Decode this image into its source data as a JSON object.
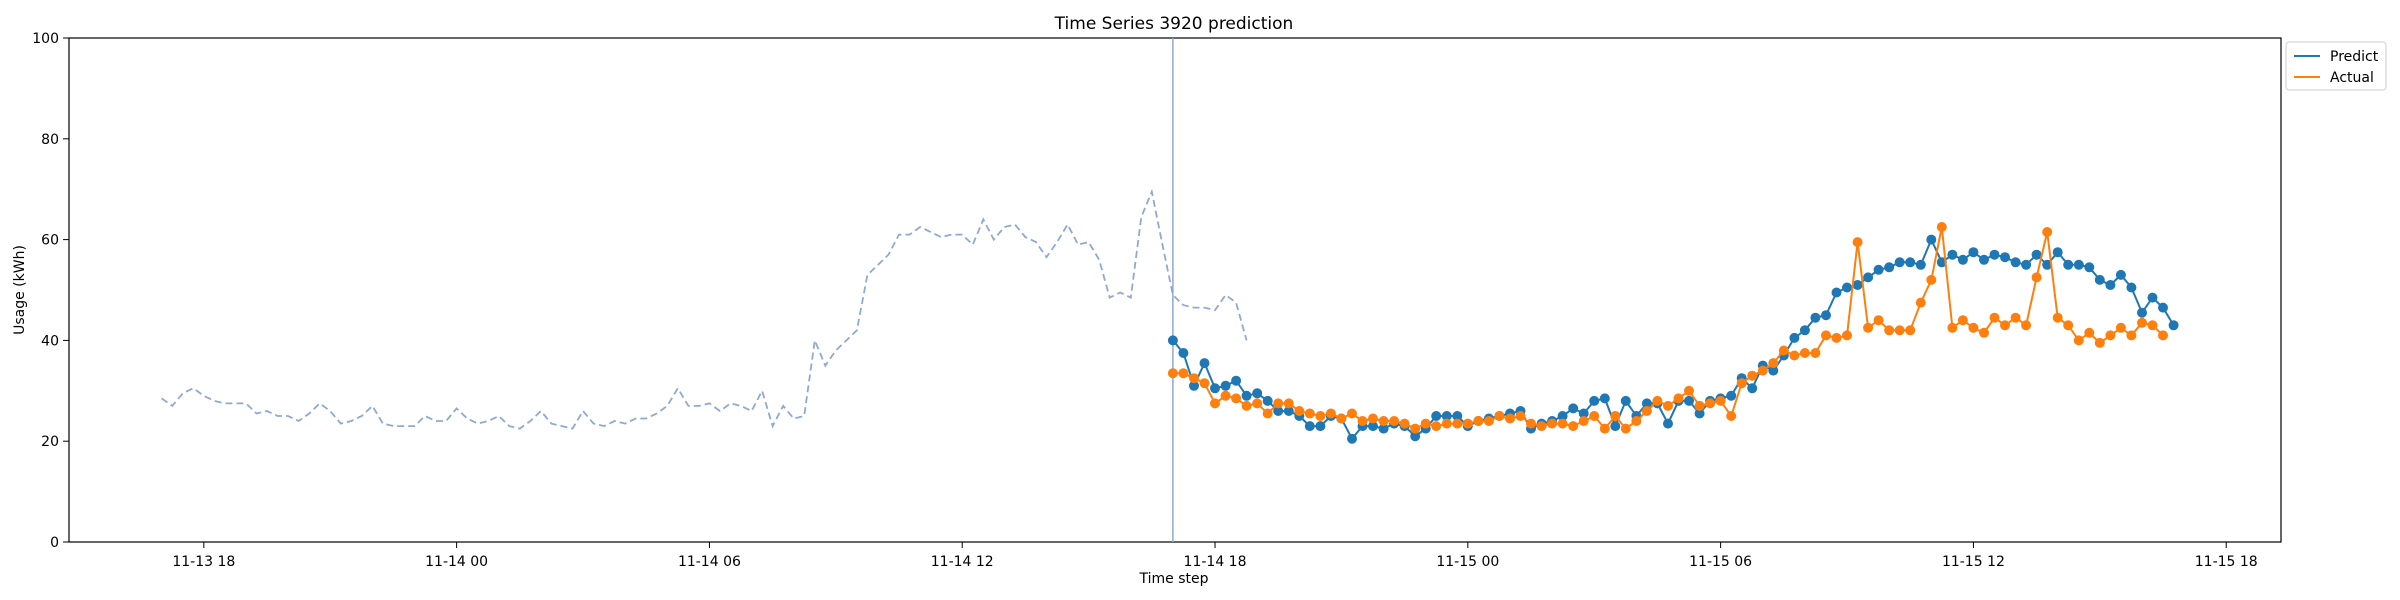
{
  "chart_data": {
    "type": "line",
    "title": "Time Series 3920 prediction",
    "xlabel": "Time step",
    "ylabel": "Usage (kWh)",
    "ylim": [
      0,
      100
    ],
    "y_ticks": [
      0,
      20,
      40,
      60,
      80,
      100
    ],
    "x_ticks": [
      "11-13 18",
      "11-14 00",
      "11-14 06",
      "11-14 12",
      "11-14 18",
      "11-15 00",
      "11-15 06",
      "11-15 12",
      "11-15 18"
    ],
    "x_range_hours": [
      -3.2,
      49.3
    ],
    "x_tick_hours": [
      0,
      6,
      12,
      18,
      24,
      30,
      36,
      42,
      48
    ],
    "forecast_start_hour": 23,
    "legend": {
      "position": "top-right",
      "entries": [
        "Predict",
        "Actual"
      ]
    },
    "colors": {
      "history": "#8fa9d1",
      "predict": "#1f77b4",
      "actual": "#ff7f0e",
      "vline": "#8fa9d1"
    },
    "history": {
      "x_start": -1.0,
      "x_step": 0.25,
      "values": [
        28.5,
        27.0,
        29.5,
        30.5,
        29.0,
        28.0,
        27.5,
        27.5,
        27.5,
        25.5,
        26.0,
        25.0,
        25.0,
        24.0,
        25.5,
        27.5,
        26.0,
        23.5,
        24.0,
        25.0,
        27.0,
        23.5,
        23.0,
        23.0,
        23.0,
        25.0,
        24.0,
        24.0,
        26.5,
        24.5,
        23.5,
        24.0,
        25.0,
        23.0,
        22.5,
        24.0,
        26.0,
        23.5,
        23.0,
        22.5,
        26.0,
        23.5,
        23.0,
        24.0,
        23.5,
        24.5,
        24.5,
        25.5,
        27.0,
        30.5,
        27.0,
        27.0,
        27.5,
        26.0,
        27.5,
        27.0,
        26.0,
        30.0,
        23.0,
        27.0,
        24.5,
        25.0,
        40.0,
        35.0,
        38.0,
        40.0,
        42.0,
        53.0,
        55.0,
        57.0,
        61.0,
        61.0,
        62.5,
        61.5,
        60.5,
        61.0,
        61.0,
        59.0,
        64.0,
        60.0,
        62.5,
        63.0,
        60.5,
        59.5,
        56.5,
        59.5,
        63.0,
        59.0,
        59.5,
        56.0,
        48.5,
        49.5,
        48.5,
        64.5,
        69.5,
        59.0,
        49.0,
        47.0,
        46.5,
        46.5,
        46.0,
        49.0,
        47.5,
        40.0
      ]
    },
    "series": [
      {
        "name": "Predict",
        "x_start": 23.0,
        "x_step": 0.25,
        "values": [
          40.0,
          37.5,
          31.0,
          35.5,
          30.5,
          31.0,
          32.0,
          29.0,
          29.5,
          28.0,
          26.0,
          26.0,
          25.0,
          23.0,
          23.0,
          25.0,
          24.5,
          20.5,
          23.0,
          23.0,
          22.5,
          23.5,
          23.0,
          21.0,
          22.5,
          25.0,
          25.0,
          25.0,
          23.0,
          24.0,
          24.5,
          25.0,
          25.5,
          26.0,
          22.5,
          23.5,
          24.0,
          25.0,
          26.5,
          25.5,
          28.0,
          28.5,
          23.0,
          28.0,
          25.0,
          27.5,
          27.5,
          23.5,
          28.0,
          28.0,
          25.5,
          28.0,
          28.5,
          29.0,
          32.5,
          30.5,
          35.0,
          34.0,
          37.0,
          40.5,
          42.0,
          44.5,
          45.0,
          49.5,
          50.5,
          51.0,
          52.5,
          54.0,
          54.5,
          55.5,
          55.5,
          55.0,
          60.0,
          55.5,
          57.0,
          56.0,
          57.5,
          56.0,
          57.0,
          56.5,
          55.5,
          55.0,
          57.0,
          55.0,
          57.5,
          55.0,
          55.0,
          54.5,
          52.0,
          51.0,
          53.0,
          50.5,
          45.5,
          48.5,
          46.5,
          43.0
        ]
      },
      {
        "name": "Actual",
        "x_start": 23.0,
        "x_step": 0.25,
        "values": [
          33.5,
          33.5,
          32.5,
          31.5,
          27.5,
          29.0,
          28.5,
          27.0,
          27.5,
          25.5,
          27.5,
          27.5,
          26.0,
          25.5,
          25.0,
          25.5,
          24.5,
          25.5,
          24.0,
          24.5,
          24.0,
          24.0,
          23.5,
          22.5,
          23.5,
          23.0,
          23.5,
          23.5,
          23.5,
          24.0,
          24.0,
          25.0,
          24.5,
          25.0,
          23.5,
          23.0,
          23.5,
          23.5,
          23.0,
          24.0,
          25.0,
          22.5,
          25.0,
          22.5,
          24.0,
          26.0,
          28.0,
          27.0,
          28.5,
          30.0,
          27.0,
          27.5,
          28.0,
          25.0,
          31.5,
          33.0,
          34.0,
          35.5,
          38.0,
          37.0,
          37.5,
          37.5,
          41.0,
          40.5,
          41.0,
          59.5,
          42.5,
          44.0,
          42.0,
          42.0,
          42.0,
          47.5,
          52.0,
          62.5,
          42.5,
          44.0,
          42.5,
          41.5,
          44.5,
          43.0,
          44.5,
          43.0,
          52.5,
          61.5,
          44.5,
          43.0,
          40.0,
          41.5,
          39.5,
          41.0,
          42.5,
          41.0,
          43.5,
          43.0,
          41.0
        ]
      }
    ]
  }
}
